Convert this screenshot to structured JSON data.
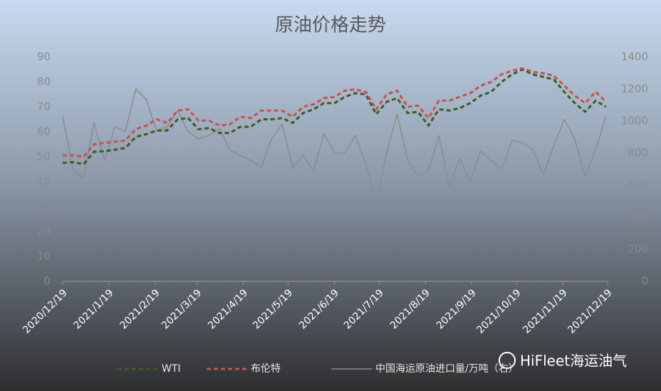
{
  "chart_data": {
    "type": "line",
    "title": "原油价格走势",
    "x": [
      "2020/12/19",
      "2020/12/26",
      "2021/1/2",
      "2021/1/9",
      "2021/1/16",
      "2021/1/23",
      "2021/1/30",
      "2021/2/6",
      "2021/2/13",
      "2021/2/20",
      "2021/2/27",
      "2021/3/6",
      "2021/3/13",
      "2021/3/20",
      "2021/3/27",
      "2021/4/3",
      "2021/4/10",
      "2021/4/17",
      "2021/4/24",
      "2021/5/1",
      "2021/5/8",
      "2021/5/15",
      "2021/5/22",
      "2021/5/29",
      "2021/6/5",
      "2021/6/12",
      "2021/6/19",
      "2021/6/26",
      "2021/7/3",
      "2021/7/10",
      "2021/7/17",
      "2021/7/24",
      "2021/7/31",
      "2021/8/7",
      "2021/8/14",
      "2021/8/21",
      "2021/8/28",
      "2021/9/4",
      "2021/9/11",
      "2021/9/18",
      "2021/9/25",
      "2021/10/2",
      "2021/10/9",
      "2021/10/16",
      "2021/10/23",
      "2021/10/30",
      "2021/11/6",
      "2021/11/13",
      "2021/11/20",
      "2021/11/27",
      "2021/12/4",
      "2021/12/11",
      "2021/12/18"
    ],
    "series": [
      {
        "name": "WTI",
        "color": "#3b5e1c",
        "dash": true,
        "values": [
          47.5,
          47.8,
          47,
          52,
          52.2,
          52.8,
          53.5,
          58,
          59,
          60.5,
          60.5,
          65,
          65.5,
          61,
          61.5,
          59.5,
          59.5,
          62,
          62,
          65,
          65,
          65.5,
          63.5,
          67.5,
          69,
          71.5,
          71.5,
          74,
          75.5,
          75,
          67,
          72,
          73.5,
          67.5,
          68,
          62.5,
          69,
          68.5,
          69.5,
          71.5,
          74.5,
          76,
          80,
          83,
          85,
          83,
          82,
          81,
          76,
          71.5,
          68,
          72.5,
          70
        ]
      },
      {
        "name": "布伦特",
        "color": "#c9504c",
        "dash": true,
        "values": [
          50.5,
          50.5,
          50,
          55,
          55.5,
          56,
          56.5,
          61,
          62.5,
          65,
          63.5,
          68.5,
          69,
          64.5,
          64.5,
          62.5,
          63,
          66,
          65.5,
          68.5,
          68.5,
          68.5,
          66,
          70,
          71,
          73.5,
          74,
          76.5,
          77,
          76,
          69,
          75,
          76.5,
          70,
          70.5,
          65.5,
          72.5,
          72.5,
          74,
          75.5,
          78.5,
          80,
          83,
          84.5,
          85.5,
          84,
          83.5,
          82.5,
          78.5,
          74.5,
          71.5,
          76,
          72
        ]
      },
      {
        "name": "中国海运原油进口量/万吨（右）",
        "color": "#8c8c8c",
        "dash": false,
        "axis": "y2",
        "values": [
          1030,
          690,
          645,
          990,
          755,
          965,
          935,
          1200,
          1135,
          935,
          965,
          1065,
          935,
          890,
          910,
          955,
          820,
          785,
          755,
          710,
          890,
          980,
          710,
          785,
          690,
          920,
          800,
          800,
          910,
          735,
          500,
          800,
          1045,
          755,
          655,
          690,
          910,
          590,
          770,
          615,
          815,
          755,
          700,
          880,
          865,
          820,
          665,
          845,
          1010,
          890,
          655,
          820,
          1030
        ]
      }
    ],
    "xlim": [
      "2020/12/19",
      "2021/12/19"
    ],
    "xticks": [
      "2020/12/19",
      "2021/1/19",
      "2021/2/19",
      "2021/3/19",
      "2021/4/19",
      "2021/5/19",
      "2021/6/19",
      "2021/7/19",
      "2021/8/19",
      "2021/9/19",
      "2021/10/19",
      "2021/11/19",
      "2021/12/19"
    ],
    "ylim": [
      0,
      90
    ],
    "yticks": [
      0,
      10,
      20,
      30,
      40,
      50,
      60,
      70,
      80,
      90
    ],
    "y2lim": [
      0,
      1400
    ],
    "y2ticks": [
      0,
      200,
      400,
      600,
      800,
      1000,
      1200,
      1400
    ],
    "grid": false,
    "legend": "bottom",
    "watermark": "HiFleet海运油气"
  }
}
